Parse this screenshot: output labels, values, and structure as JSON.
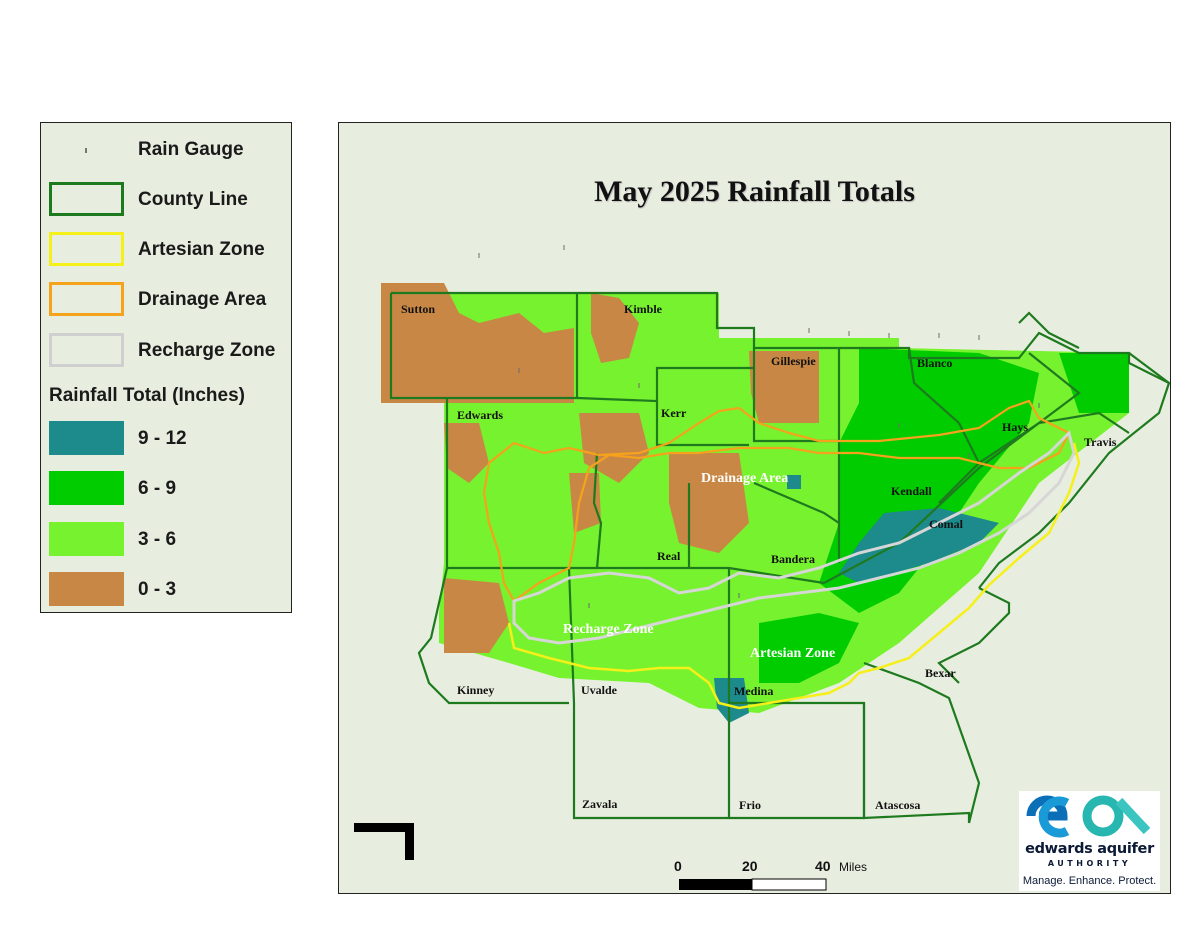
{
  "map": {
    "title": "May 2025 Rainfall Totals",
    "counties": [
      "Sutton",
      "Kimble",
      "Gillespie",
      "Blanco",
      "Edwards",
      "Kerr",
      "Hays",
      "Travis",
      "Kendall",
      "Comal",
      "Real",
      "Bandera",
      "Kinney",
      "Uvalde",
      "Medina",
      "Bexar",
      "Zavala",
      "Frio",
      "Atascosa"
    ],
    "zones": [
      "Drainage Area",
      "Recharge Zone",
      "Artesian Zone"
    ],
    "scale_bar": {
      "ticks": [
        "0",
        "20",
        "40"
      ],
      "unit": "Miles"
    }
  },
  "legend": {
    "items": [
      {
        "label": "Rain Gauge",
        "symbol": "rain-gauge-marker"
      },
      {
        "label": "County Line",
        "color": "#1e7a1e"
      },
      {
        "label": "Artesian Zone",
        "color": "#f5ef1a"
      },
      {
        "label": "Drainage Area",
        "color": "#f5a21c"
      },
      {
        "label": "Recharge Zone",
        "color": "#cfcfcf"
      }
    ],
    "rainfall_title": "Rainfall Total (Inches)",
    "rainfall_classes": [
      {
        "label": "9 - 12",
        "color": "#1d8a8c"
      },
      {
        "label": "6 - 9",
        "color": "#00cc00"
      },
      {
        "label": "3 - 6",
        "color": "#77f22e"
      },
      {
        "label": "0 - 3",
        "color": "#c98745"
      }
    ]
  },
  "logo": {
    "name": "edwards aquifer",
    "sub": "AUTHORITY",
    "tagline": "Manage. Enhance. Protect."
  }
}
